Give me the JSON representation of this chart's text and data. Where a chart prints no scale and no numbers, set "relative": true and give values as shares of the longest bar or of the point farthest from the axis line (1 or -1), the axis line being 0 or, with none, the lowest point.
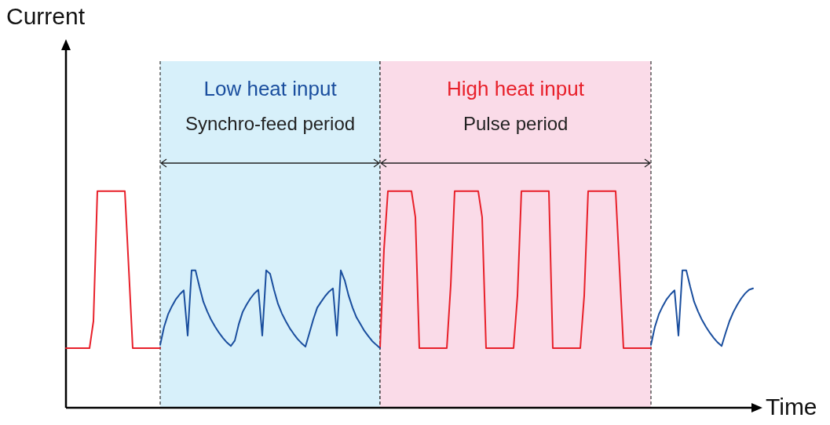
{
  "chart_data": {
    "type": "line",
    "xlabel": "Time",
    "relative": true,
    "tick_labels": false,
    "marker": "none",
    "line_style": "solid",
    "categories": [
      null,
      null,
      null,
      null,
      null,
      null,
      null,
      null,
      null,
      null,
      null,
      null,
      null,
      null,
      null,
      null,
      null,
      null,
      null,
      null,
      null,
      null,
      null,
      null,
      null,
      null,
      null,
      null,
      null,
      null,
      null,
      null,
      null,
      null,
      null,
      null,
      null,
      null,
      null,
      null,
      null,
      null,
      null,
      null,
      null,
      null,
      null,
      null,
      null,
      null,
      null,
      null,
      null,
      null,
      null,
      null,
      null,
      null,
      null,
      null,
      null,
      null,
      null,
      null,
      null,
      null,
      null,
      null,
      null,
      null,
      null,
      null,
      null,
      null,
      null,
      null,
      null,
      null,
      null,
      null,
      null,
      null,
      null,
      null,
      null,
      null,
      null,
      null,
      null,
      null,
      null,
      null,
      null,
      null,
      null,
      null,
      null,
      null,
      null,
      null,
      null,
      null,
      null,
      null,
      null,
      null,
      null,
      null,
      null,
      null,
      null,
      null,
      null,
      null,
      null,
      null,
      null,
      null,
      null,
      null,
      null,
      null,
      null,
      null,
      null,
      null,
      null,
      null,
      null,
      null,
      null,
      null,
      null,
      null,
      null,
      null,
      null,
      null,
      null,
      null,
      null,
      null,
      null,
      null,
      null,
      null,
      null,
      null,
      null,
      null,
      null,
      null,
      null,
      null,
      null,
      null,
      null,
      null,
      null,
      null,
      null,
      null,
      null,
      null,
      null,
      null,
      null,
      null,
      null,
      null,
      null,
      null,
      null,
      null,
      null,
      null
    ],
    "series": [
      {
        "color": "#e8202a",
        "values": [
          0.275,
          0.275,
          0.275,
          0.275,
          0.275,
          0.275,
          0.275,
          0.4,
          1,
          1,
          1,
          1,
          1,
          1,
          1,
          1,
          0.64,
          0.275,
          0.275,
          0.275,
          0.275,
          0.275,
          0.275,
          0.275,
          0.275,
          null,
          null,
          null,
          null,
          null,
          null,
          null,
          null,
          null,
          null,
          null,
          null,
          null,
          null,
          null,
          null,
          null,
          null,
          null,
          null,
          null,
          null,
          null,
          null,
          null,
          null,
          null,
          null,
          null,
          null,
          null,
          null,
          null,
          null,
          null,
          null,
          null,
          null,
          null,
          null,
          null,
          null,
          null,
          null,
          null,
          null,
          null,
          null,
          null,
          null,
          null,
          null,
          null,
          null,
          null,
          null,
          null,
          null,
          null,
          null,
          null,
          null,
          null,
          null,
          null,
          null,
          null,
          null,
          null,
          null,
          null,
          null,
          null,
          null,
          null,
          null,
          null,
          null,
          null,
          null,
          null,
          null,
          null,
          null,
          null,
          null,
          null,
          null,
          null,
          null,
          null,
          null,
          null,
          null,
          null,
          null,
          null,
          null,
          null,
          null,
          null,
          null,
          null,
          null,
          null,
          null,
          null,
          null,
          null,
          null,
          null,
          null,
          null,
          null,
          null,
          null,
          null,
          null,
          null,
          null,
          null,
          null,
          null,
          null,
          null,
          null,
          null,
          null,
          null,
          null,
          null,
          null,
          null,
          null,
          null,
          null,
          null,
          null,
          null,
          null,
          null,
          null,
          null,
          null,
          null,
          null,
          null,
          null,
          null,
          null,
          null
        ]
      },
      {
        "color": "#1a4e9e",
        "values": [
          null,
          null,
          null,
          null,
          null,
          null,
          null,
          null,
          null,
          null,
          null,
          null,
          null,
          null,
          null,
          null,
          null,
          null,
          null,
          null,
          null,
          null,
          null,
          null,
          0.29,
          0.374,
          0.431,
          0.469,
          0.501,
          0.524,
          0.542,
          0.333,
          0.634,
          0.634,
          0.558,
          0.489,
          0.444,
          0.405,
          0.374,
          0.346,
          0.322,
          0.301,
          0.285,
          0.31,
          0.385,
          0.442,
          0.476,
          0.505,
          0.528,
          0.545,
          0.333,
          0.634,
          0.618,
          0.544,
          0.48,
          0.435,
          0.399,
          0.367,
          0.341,
          0.317,
          0.298,
          0.282,
          0.345,
          0.408,
          0.462,
          0.489,
          0.515,
          0.536,
          0.551,
          0.333,
          0.634,
          0.588,
          0.517,
          0.462,
          0.417,
          0.386,
          0.355,
          0.331,
          0.308,
          0.291,
          0.275,
          null,
          null,
          null,
          null,
          null,
          null,
          null,
          null,
          null,
          null,
          null,
          null,
          null,
          null,
          null,
          null,
          null,
          null,
          null,
          null,
          null,
          null,
          null,
          null,
          null,
          null,
          null,
          null,
          null,
          null,
          null,
          null,
          null,
          null,
          null,
          null,
          null,
          null,
          null,
          null,
          null,
          null,
          null,
          null,
          null,
          null,
          null,
          null,
          null,
          null,
          null,
          null,
          null,
          null,
          null,
          null,
          null,
          null,
          null,
          null,
          null,
          null,
          null,
          null,
          null,
          null,
          null,
          null,
          null,
          null,
          null,
          null,
          null,
          null,
          null,
          null,
          null,
          null,
          null,
          null,
          null,
          null,
          null,
          null,
          null,
          null,
          null,
          null,
          null,
          null,
          null,
          null,
          null,
          null,
          null
        ]
      },
      {
        "color": "#e8202a",
        "values": [
          null,
          null,
          null,
          null,
          null,
          null,
          null,
          null,
          null,
          null,
          null,
          null,
          null,
          null,
          null,
          null,
          null,
          null,
          null,
          null,
          null,
          null,
          null,
          null,
          null,
          null,
          null,
          null,
          null,
          null,
          null,
          null,
          null,
          null,
          null,
          null,
          null,
          null,
          null,
          null,
          null,
          null,
          null,
          null,
          null,
          null,
          null,
          null,
          null,
          null,
          null,
          null,
          null,
          null,
          null,
          null,
          null,
          null,
          null,
          null,
          null,
          null,
          null,
          null,
          null,
          null,
          null,
          null,
          null,
          null,
          null,
          null,
          null,
          null,
          null,
          null,
          null,
          null,
          null,
          null,
          0.275,
          0.73,
          1,
          1,
          1,
          1,
          1,
          1,
          1,
          0.88,
          0.275,
          0.275,
          0.275,
          0.275,
          0.275,
          0.275,
          0.275,
          0.275,
          0.565,
          1,
          1,
          1,
          1,
          1,
          1,
          1,
          0.88,
          0.275,
          0.275,
          0.275,
          0.275,
          0.275,
          0.275,
          0.275,
          0.275,
          0.517,
          1,
          1,
          1,
          1,
          1,
          1,
          1,
          1,
          0.275,
          0.275,
          0.275,
          0.275,
          0.275,
          0.275,
          0.275,
          0.275,
          0.517,
          1,
          1,
          1,
          1,
          1,
          1,
          1,
          1,
          0.64,
          0.275,
          0.275,
          0.275,
          0.275,
          0.275,
          0.275,
          0.275,
          0.275,
          null,
          null,
          null,
          null,
          null,
          null,
          null,
          null,
          null,
          null,
          null,
          null,
          null,
          null,
          null,
          null,
          null,
          null,
          null,
          null,
          null,
          null,
          null,
          null,
          null,
          null
        ]
      },
      {
        "color": "#1a4e9e",
        "values": [
          null,
          null,
          null,
          null,
          null,
          null,
          null,
          null,
          null,
          null,
          null,
          null,
          null,
          null,
          null,
          null,
          null,
          null,
          null,
          null,
          null,
          null,
          null,
          null,
          null,
          null,
          null,
          null,
          null,
          null,
          null,
          null,
          null,
          null,
          null,
          null,
          null,
          null,
          null,
          null,
          null,
          null,
          null,
          null,
          null,
          null,
          null,
          null,
          null,
          null,
          null,
          null,
          null,
          null,
          null,
          null,
          null,
          null,
          null,
          null,
          null,
          null,
          null,
          null,
          null,
          null,
          null,
          null,
          null,
          null,
          null,
          null,
          null,
          null,
          null,
          null,
          null,
          null,
          null,
          null,
          null,
          null,
          null,
          null,
          null,
          null,
          null,
          null,
          null,
          null,
          null,
          null,
          null,
          null,
          null,
          null,
          null,
          null,
          null,
          null,
          null,
          null,
          null,
          null,
          null,
          null,
          null,
          null,
          null,
          null,
          null,
          null,
          null,
          null,
          null,
          null,
          null,
          null,
          null,
          null,
          null,
          null,
          null,
          null,
          null,
          null,
          null,
          null,
          null,
          null,
          null,
          null,
          null,
          null,
          null,
          null,
          null,
          null,
          null,
          null,
          null,
          null,
          null,
          null,
          null,
          null,
          null,
          null,
          null,
          0.29,
          0.374,
          0.431,
          0.469,
          0.501,
          0.524,
          0.542,
          0.333,
          0.634,
          0.634,
          0.558,
          0.489,
          0.444,
          0.405,
          0.374,
          0.346,
          0.322,
          0.301,
          0.285,
          0.345,
          0.4,
          0.442,
          0.476,
          0.505,
          0.528,
          0.545,
          0.551
        ]
      }
    ],
    "annotations": [
      "Current",
      "Low heat input",
      "Synchro-feed period",
      "High heat input",
      "Pulse period"
    ]
  }
}
